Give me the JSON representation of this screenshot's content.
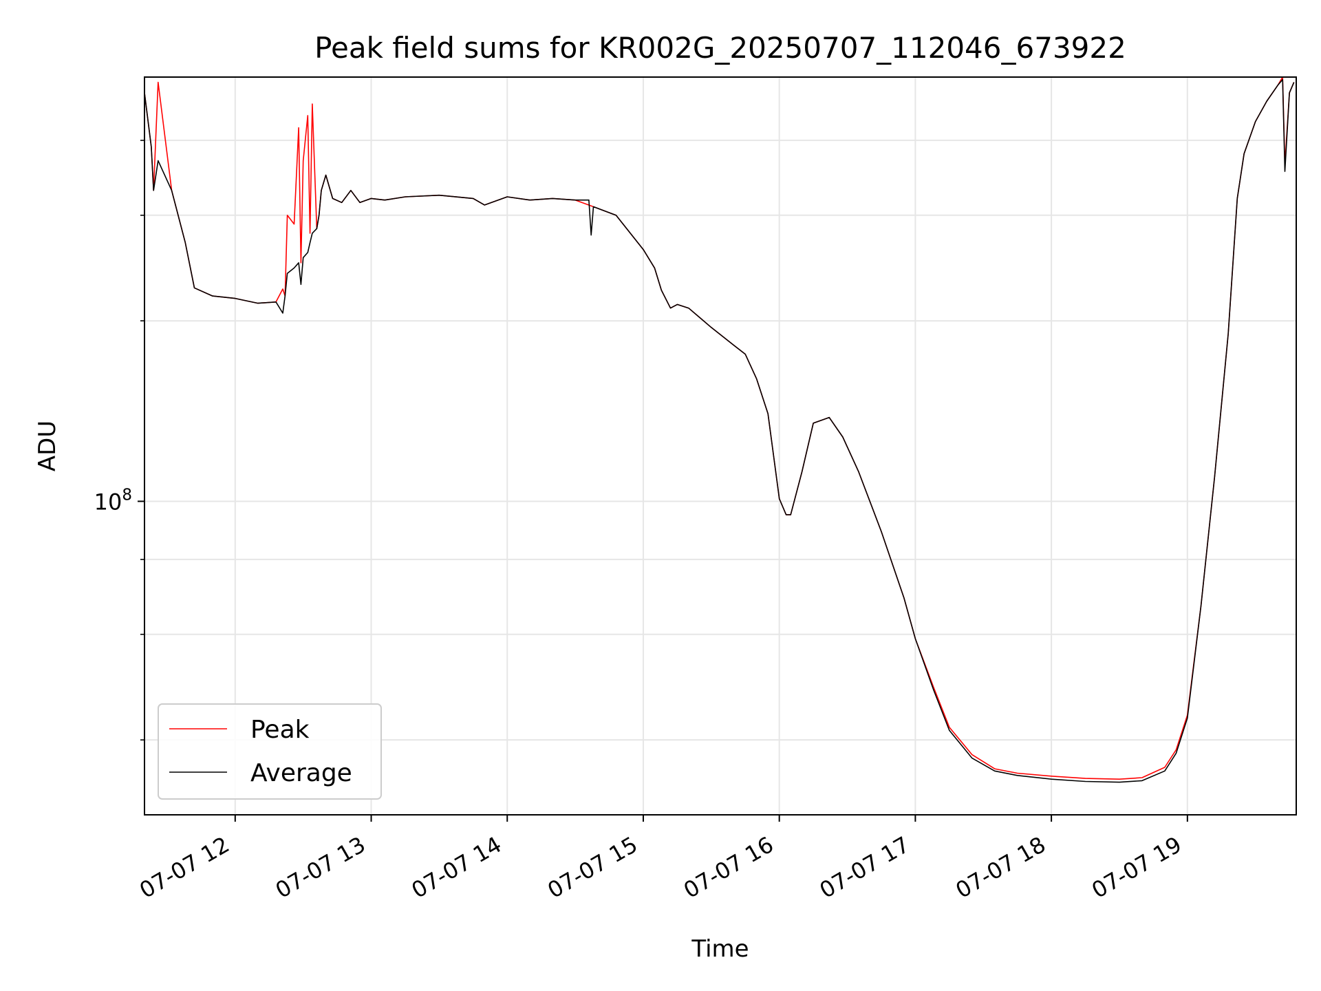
{
  "chart_data": {
    "type": "line",
    "title": "Peak field sums for KR002G_20250707_112046_673922",
    "xlabel": "Time",
    "ylabel": "ADU",
    "y_scale": "log",
    "ylim": [
      30000000,
      510000000
    ],
    "xlim": [
      "07-07 11:20",
      "07-07 19:48"
    ],
    "x_tick_labels": [
      "07-07 12",
      "07-07 13",
      "07-07 14",
      "07-07 15",
      "07-07 16",
      "07-07 17",
      "07-07 18",
      "07-07 19"
    ],
    "x_tick_values": [
      "07-07 12:00",
      "07-07 13:00",
      "07-07 14:00",
      "07-07 15:00",
      "07-07 16:00",
      "07-07 17:00",
      "07-07 18:00",
      "07-07 19:00"
    ],
    "y_tick_label_major": {
      "base": "10",
      "exponent": "8"
    },
    "y_minor_ticks": [
      40000000,
      60000000,
      80000000,
      200000000,
      300000000,
      400000000
    ],
    "grid": true,
    "legend_position": "lower-left",
    "colors": {
      "peak": "#ff0000",
      "average": "#000000"
    },
    "series": [
      {
        "name": "Peak",
        "x": [
          "07-07 11:20",
          "07-07 11:23",
          "07-07 11:24",
          "07-07 11:26",
          "07-07 11:32",
          "07-07 11:38",
          "07-07 11:42",
          "07-07 11:50",
          "07-07 12:00",
          "07-07 12:10",
          "07-07 12:18",
          "07-07 12:21",
          "07-07 12:22",
          "07-07 12:23",
          "07-07 12:26",
          "07-07 12:28",
          "07-07 12:29",
          "07-07 12:30",
          "07-07 12:32",
          "07-07 12:33",
          "07-07 12:34",
          "07-07 12:36",
          "07-07 12:37",
          "07-07 12:38",
          "07-07 12:40",
          "07-07 12:43",
          "07-07 12:47",
          "07-07 12:51",
          "07-07 12:55",
          "07-07 13:00",
          "07-07 13:06",
          "07-07 13:15",
          "07-07 13:30",
          "07-07 13:45",
          "07-07 13:50",
          "07-07 14:00",
          "07-07 14:10",
          "07-07 14:20",
          "07-07 14:30",
          "07-07 14:38",
          "07-07 14:48",
          "07-07 15:00",
          "07-07 15:05",
          "07-07 15:08",
          "07-07 15:12",
          "07-07 15:15",
          "07-07 15:20",
          "07-07 15:30",
          "07-07 15:40",
          "07-07 15:45",
          "07-07 15:50",
          "07-07 15:55",
          "07-07 16:00",
          "07-07 16:03",
          "07-07 16:05",
          "07-07 16:10",
          "07-07 16:15",
          "07-07 16:22",
          "07-07 16:28",
          "07-07 16:35",
          "07-07 16:45",
          "07-07 16:55",
          "07-07 17:00",
          "07-07 17:08",
          "07-07 17:15",
          "07-07 17:25",
          "07-07 17:35",
          "07-07 17:45",
          "07-07 18:00",
          "07-07 18:15",
          "07-07 18:30",
          "07-07 18:40",
          "07-07 18:50",
          "07-07 18:55",
          "07-07 19:00",
          "07-07 19:06",
          "07-07 19:12",
          "07-07 19:18",
          "07-07 19:22",
          "07-07 19:25",
          "07-07 19:30",
          "07-07 19:35",
          "07-07 19:40",
          "07-07 19:42",
          "07-07 19:43",
          "07-07 19:45",
          "07-07 19:47"
        ],
        "values": [
          480000000,
          390000000,
          330000000,
          500000000,
          330000000,
          270000000,
          227000000,
          220000000,
          218000000,
          214000000,
          215000000,
          226000000,
          220000000,
          300000000,
          290000000,
          420000000,
          250000000,
          370000000,
          440000000,
          280000000,
          460000000,
          285000000,
          300000000,
          330000000,
          350000000,
          320000000,
          315000000,
          330000000,
          315000000,
          320000000,
          318000000,
          322000000,
          324000000,
          320000000,
          312000000,
          322000000,
          318000000,
          320000000,
          318000000,
          310000000,
          300000000,
          263000000,
          245000000,
          225000000,
          210000000,
          213000000,
          210000000,
          195000000,
          182000000,
          176000000,
          160000000,
          140000000,
          101000000,
          95000000,
          95000000,
          112000000,
          135000000,
          138000000,
          128000000,
          112000000,
          89000000,
          69000000,
          59000000,
          49000000,
          42000000,
          37800000,
          35800000,
          35200000,
          34800000,
          34500000,
          34400000,
          34600000,
          36000000,
          38500000,
          44000000,
          67000000,
          110000000,
          190000000,
          320000000,
          380000000,
          430000000,
          465000000,
          495000000,
          510000000,
          365000000,
          480000000,
          500000000
        ]
      },
      {
        "name": "Average",
        "x": [
          "07-07 11:20",
          "07-07 11:23",
          "07-07 11:24",
          "07-07 11:26",
          "07-07 11:32",
          "07-07 11:38",
          "07-07 11:42",
          "07-07 11:50",
          "07-07 12:00",
          "07-07 12:10",
          "07-07 12:18",
          "07-07 12:21",
          "07-07 12:22",
          "07-07 12:23",
          "07-07 12:26",
          "07-07 12:28",
          "07-07 12:29",
          "07-07 12:30",
          "07-07 12:32",
          "07-07 12:33",
          "07-07 12:34",
          "07-07 12:36",
          "07-07 12:37",
          "07-07 12:38",
          "07-07 12:40",
          "07-07 12:43",
          "07-07 12:47",
          "07-07 12:51",
          "07-07 12:55",
          "07-07 13:00",
          "07-07 13:06",
          "07-07 13:15",
          "07-07 13:30",
          "07-07 13:45",
          "07-07 13:50",
          "07-07 14:00",
          "07-07 14:10",
          "07-07 14:20",
          "07-07 14:30",
          "07-07 14:36",
          "07-07 14:37",
          "07-07 14:38",
          "07-07 14:48",
          "07-07 15:00",
          "07-07 15:05",
          "07-07 15:08",
          "07-07 15:12",
          "07-07 15:15",
          "07-07 15:20",
          "07-07 15:30",
          "07-07 15:40",
          "07-07 15:45",
          "07-07 15:50",
          "07-07 15:55",
          "07-07 16:00",
          "07-07 16:03",
          "07-07 16:05",
          "07-07 16:10",
          "07-07 16:15",
          "07-07 16:22",
          "07-07 16:28",
          "07-07 16:35",
          "07-07 16:45",
          "07-07 16:55",
          "07-07 17:00",
          "07-07 17:08",
          "07-07 17:15",
          "07-07 17:25",
          "07-07 17:35",
          "07-07 17:45",
          "07-07 18:00",
          "07-07 18:15",
          "07-07 18:30",
          "07-07 18:40",
          "07-07 18:50",
          "07-07 18:55",
          "07-07 19:00",
          "07-07 19:06",
          "07-07 19:12",
          "07-07 19:18",
          "07-07 19:22",
          "07-07 19:25",
          "07-07 19:30",
          "07-07 19:35",
          "07-07 19:40",
          "07-07 19:42",
          "07-07 19:43",
          "07-07 19:45",
          "07-07 19:47"
        ],
        "values": [
          480000000,
          390000000,
          330000000,
          370000000,
          330000000,
          270000000,
          227000000,
          220000000,
          218000000,
          214000000,
          215000000,
          206000000,
          220000000,
          240000000,
          245000000,
          250000000,
          230000000,
          255000000,
          260000000,
          270000000,
          280000000,
          285000000,
          300000000,
          330000000,
          350000000,
          320000000,
          315000000,
          330000000,
          315000000,
          320000000,
          318000000,
          322000000,
          324000000,
          320000000,
          312000000,
          322000000,
          318000000,
          320000000,
          318000000,
          318000000,
          278000000,
          310000000,
          300000000,
          263000000,
          245000000,
          225000000,
          210000000,
          213000000,
          210000000,
          195000000,
          182000000,
          176000000,
          160000000,
          140000000,
          101000000,
          95000000,
          95000000,
          112000000,
          135000000,
          138000000,
          128000000,
          112000000,
          89000000,
          69000000,
          59000000,
          48500000,
          41500000,
          37300000,
          35500000,
          34900000,
          34400000,
          34100000,
          34000000,
          34200000,
          35500000,
          38000000,
          43500000,
          67000000,
          110000000,
          190000000,
          320000000,
          380000000,
          430000000,
          465000000,
          495000000,
          505000000,
          355000000,
          480000000,
          500000000
        ]
      }
    ]
  }
}
